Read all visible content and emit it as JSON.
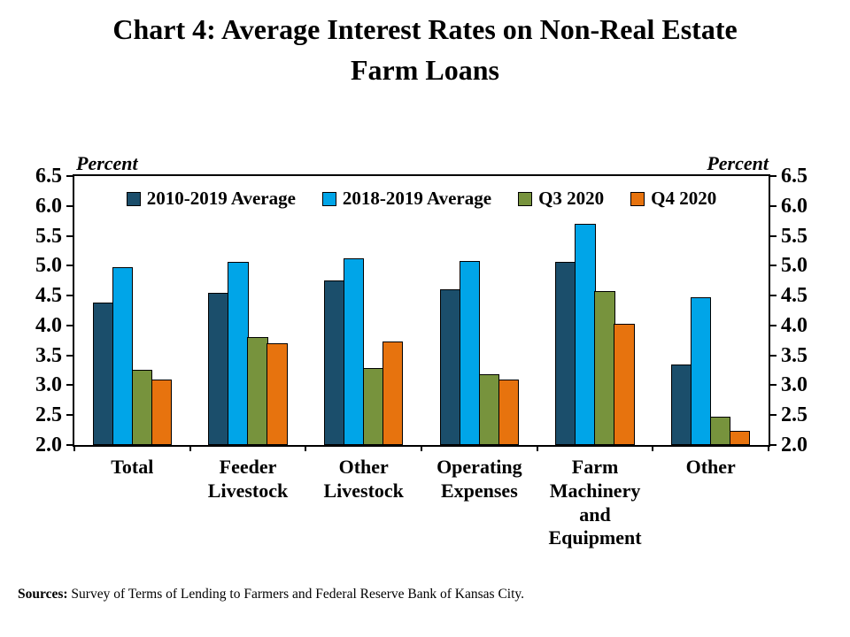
{
  "title": {
    "line1": "Chart 4: Average Interest Rates on Non-Real Estate",
    "line2": "Farm Loans"
  },
  "axis_left_label": "Percent",
  "axis_right_label": "Percent",
  "footer": {
    "label": "Sources:",
    "text": " Survey of Terms of Lending to Farmers and Federal Reserve Bank of Kansas City."
  },
  "chart_data": {
    "type": "bar",
    "title": "Chart 4: Average Interest Rates on Non-Real Estate Farm Loans",
    "ylabel": "Percent",
    "ylim": [
      2.0,
      6.5
    ],
    "ytick_step": 0.5,
    "yticks": [
      "6.5",
      "6.0",
      "5.5",
      "5.0",
      "4.5",
      "4.0",
      "3.5",
      "3.0",
      "2.5",
      "2.0"
    ],
    "grid": false,
    "legend_position": "top-inside",
    "categories": [
      "Total",
      "Feeder\nLivestock",
      "Other\nLivestock",
      "Operating\nExpenses",
      "Farm\nMachinery\nand\nEquipment",
      "Other"
    ],
    "series": [
      {
        "name": "2010-2019 Average",
        "color": "#1B4E6B",
        "values": [
          4.38,
          4.54,
          4.76,
          4.61,
          5.06,
          3.35
        ]
      },
      {
        "name": "2018-2019 Average",
        "color": "#00A5E8",
        "values": [
          4.98,
          5.06,
          5.13,
          5.08,
          5.7,
          4.47
        ]
      },
      {
        "name": "Q3 2020",
        "color": "#77933D",
        "values": [
          3.26,
          3.81,
          3.29,
          3.18,
          4.57,
          2.47
        ]
      },
      {
        "name": "Q4 2020",
        "color": "#E7730E",
        "values": [
          3.09,
          3.7,
          3.73,
          3.09,
          4.03,
          2.24
        ]
      }
    ]
  }
}
